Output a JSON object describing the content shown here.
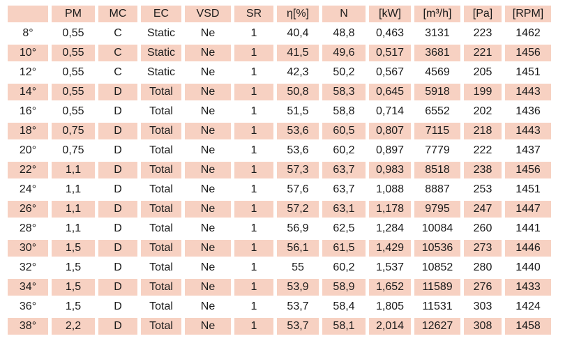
{
  "colors": {
    "cell_bg": "#f7d1c2",
    "text": "#1b1b1b",
    "background": "#ffffff"
  },
  "table": {
    "columns": [
      "",
      "PM",
      "MC",
      "EC",
      "VSD",
      "SR",
      "η[%]",
      "N",
      "[kW]",
      "[m³/h]",
      "[Pa]",
      "[RPM]"
    ],
    "rows": [
      [
        "8°",
        "0,55",
        "C",
        "Static",
        "Ne",
        "1",
        "40,4",
        "48,8",
        "0,463",
        "3131",
        "223",
        "1462"
      ],
      [
        "10°",
        "0,55",
        "C",
        "Static",
        "Ne",
        "1",
        "41,5",
        "49,6",
        "0,517",
        "3681",
        "221",
        "1456"
      ],
      [
        "12°",
        "0,55",
        "C",
        "Static",
        "Ne",
        "1",
        "42,3",
        "50,2",
        "0,567",
        "4569",
        "205",
        "1451"
      ],
      [
        "14°",
        "0,55",
        "D",
        "Total",
        "Ne",
        "1",
        "50,8",
        "58,3",
        "0,645",
        "5918",
        "199",
        "1443"
      ],
      [
        "16°",
        "0,55",
        "D",
        "Total",
        "Ne",
        "1",
        "51,5",
        "58,8",
        "0,714",
        "6552",
        "202",
        "1436"
      ],
      [
        "18°",
        "0,75",
        "D",
        "Total",
        "Ne",
        "1",
        "53,6",
        "60,5",
        "0,807",
        "7115",
        "218",
        "1443"
      ],
      [
        "20°",
        "0,75",
        "D",
        "Total",
        "Ne",
        "1",
        "53,6",
        "60,2",
        "0,897",
        "7779",
        "222",
        "1437"
      ],
      [
        "22°",
        "1,1",
        "D",
        "Total",
        "Ne",
        "1",
        "57,3",
        "63,7",
        "0,983",
        "8518",
        "238",
        "1456"
      ],
      [
        "24°",
        "1,1",
        "D",
        "Total",
        "Ne",
        "1",
        "57,6",
        "63,7",
        "1,088",
        "8887",
        "253",
        "1451"
      ],
      [
        "26°",
        "1,1",
        "D",
        "Total",
        "Ne",
        "1",
        "57,2",
        "63,1",
        "1,178",
        "9795",
        "247",
        "1447"
      ],
      [
        "28°",
        "1,1",
        "D",
        "Total",
        "Ne",
        "1",
        "56,9",
        "62,5",
        "1,284",
        "10084",
        "260",
        "1441"
      ],
      [
        "30°",
        "1,5",
        "D",
        "Total",
        "Ne",
        "1",
        "56,1",
        "61,5",
        "1,429",
        "10536",
        "273",
        "1446"
      ],
      [
        "32°",
        "1,5",
        "D",
        "Total",
        "Ne",
        "1",
        "55",
        "60,2",
        "1,537",
        "10852",
        "280",
        "1440"
      ],
      [
        "34°",
        "1,5",
        "D",
        "Total",
        "Ne",
        "1",
        "53,9",
        "58,9",
        "1,652",
        "11589",
        "276",
        "1433"
      ],
      [
        "36°",
        "1,5",
        "D",
        "Total",
        "Ne",
        "1",
        "53,7",
        "58,4",
        "1,805",
        "11531",
        "303",
        "1424"
      ],
      [
        "38°",
        "2,2",
        "D",
        "Total",
        "Ne",
        "1",
        "53,7",
        "58,1",
        "2,014",
        "12627",
        "308",
        "1458"
      ]
    ]
  }
}
